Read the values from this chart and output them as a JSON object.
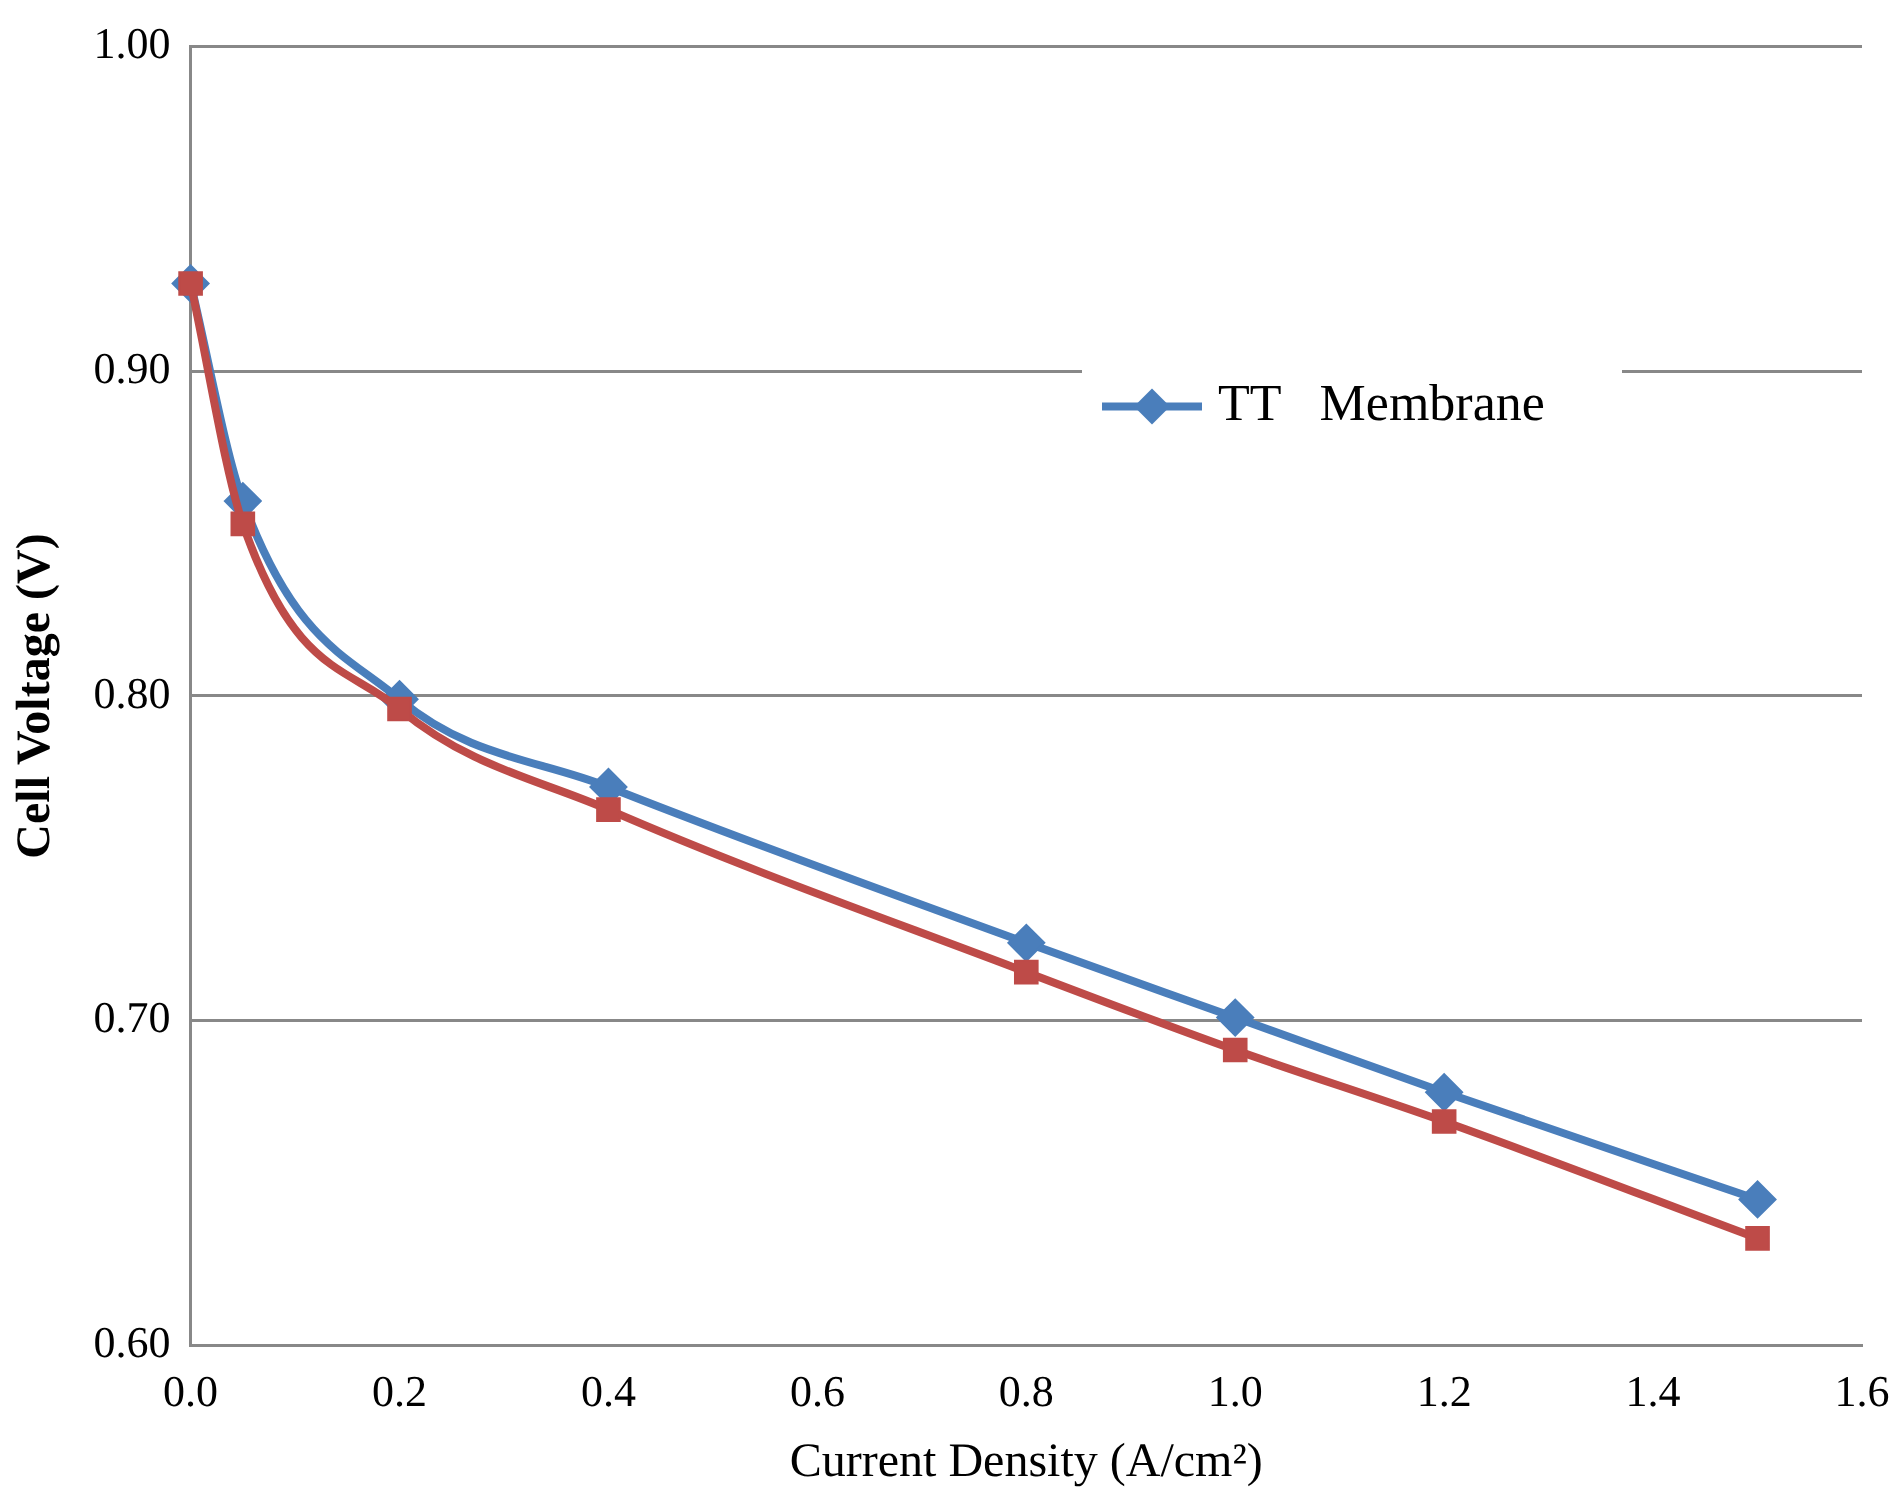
{
  "chart_data": {
    "type": "line",
    "xlabel": "Current Density (A/cm²)",
    "ylabel": "Cell Voltage (V)",
    "xlim": [
      0,
      1.6
    ],
    "xticks": [
      {
        "value": 0,
        "label": "0.0"
      },
      {
        "value": 0.2,
        "label": "0.2"
      },
      {
        "value": 0.4,
        "label": "0.4"
      },
      {
        "value": 0.6,
        "label": "0.6"
      },
      {
        "value": 0.8,
        "label": "0.8"
      },
      {
        "value": 1,
        "label": "1.0"
      },
      {
        "value": 1.2,
        "label": "1.2"
      },
      {
        "value": 1.4,
        "label": "1.4"
      },
      {
        "value": 1.6,
        "label": "1.6"
      }
    ],
    "ylim": [
      0.6,
      1
    ],
    "yticks": [
      {
        "value": 0.6,
        "label": "0.60"
      },
      {
        "value": 0.7,
        "label": "0.70"
      },
      {
        "value": 0.8,
        "label": "0.80"
      },
      {
        "value": 0.9,
        "label": "0.90"
      },
      {
        "value": 1,
        "label": "1.00"
      }
    ],
    "grid": "y",
    "legend": "right",
    "series": [
      {
        "name": "TT   Membrane",
        "color": "#4a7ebb",
        "marker": "diamond",
        "x": [
          0,
          0.05,
          0.2,
          0.4,
          0.8,
          1,
          1.2,
          1.5
        ],
        "values": [
          0.927,
          0.86,
          0.799,
          0.772,
          0.724,
          0.701,
          0.678,
          0.645
        ]
      },
      {
        "color": "#be4b48",
        "marker": "square",
        "x": [
          0,
          0.05,
          0.2,
          0.4,
          0.8,
          1,
          1.2,
          1.5
        ],
        "values": [
          0.927,
          0.853,
          0.796,
          0.765,
          0.715,
          0.691,
          0.669,
          0.633
        ]
      }
    ]
  }
}
